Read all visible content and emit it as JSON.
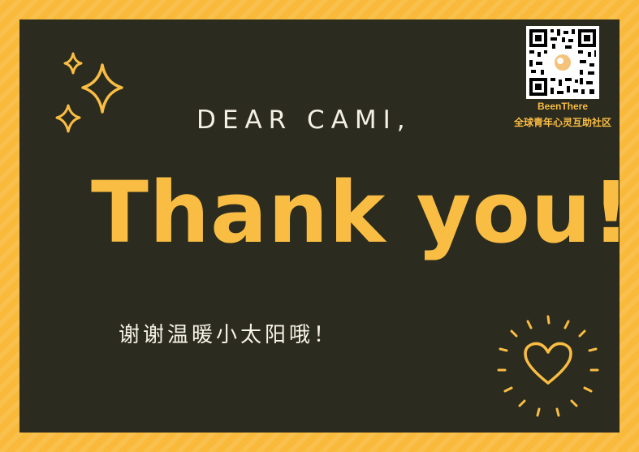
{
  "card": {
    "greeting": "DEAR CAMI,",
    "headline": "Thank you!",
    "subtitle": "谢谢温暖小太阳哦！"
  },
  "brand": {
    "name": "BeenThere",
    "tagline": "全球青年心灵互助社区",
    "qr_icon": "qr-code-icon"
  },
  "decorations": {
    "sparkle_icon": "sparkle-icon",
    "heart_icon": "heart-icon"
  },
  "colors": {
    "frame": "#f9b93a",
    "board": "#2b2b1f",
    "accent": "#f9bd43",
    "text_light": "#f4f1e4"
  }
}
